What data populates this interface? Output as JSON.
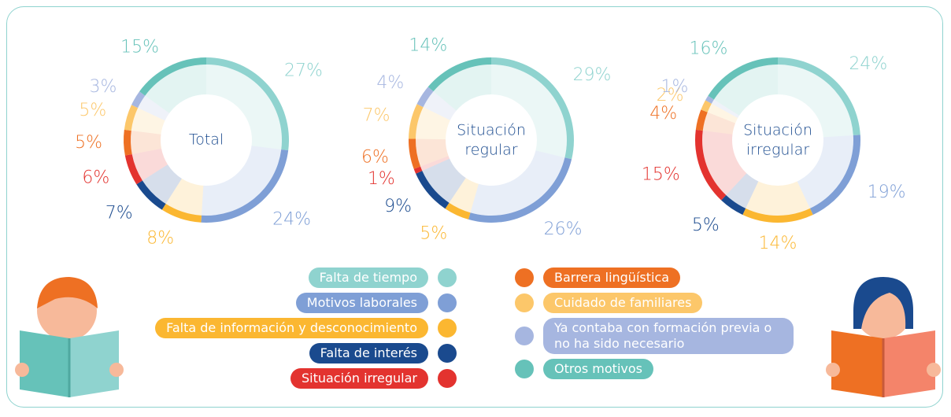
{
  "legend": {
    "categories": [
      "Falta de tiempo",
      "Motivos laborales",
      "Falta de información y desconocimiento",
      "Falta de interés",
      "Situación irregular",
      "Barrera lingüística",
      "Cuidado de familiares",
      "Ya contaba con formación previa o no ha sido necesario",
      "Otros motivos"
    ],
    "colors": [
      "#8fd3cf",
      "#7f9fd6",
      "#fbb731",
      "#1a4a8e",
      "#e3332f",
      "#ee7023",
      "#fcc76a",
      "#a6b6e0",
      "#66c2b9"
    ]
  },
  "chart_data": [
    {
      "type": "pie",
      "title": "Total",
      "values": [
        27,
        24,
        8,
        7,
        6,
        5,
        5,
        3,
        15
      ],
      "value_labels": [
        "27%",
        "24%",
        "8%",
        "7%",
        "6%",
        "5%",
        "5%",
        "3%",
        "15%"
      ]
    },
    {
      "type": "pie",
      "title": "Situación regular",
      "values": [
        29,
        26,
        5,
        9,
        1,
        6,
        7,
        4,
        14
      ],
      "value_labels": [
        "29%",
        "26%",
        "5%",
        "9%",
        "1%",
        "6%",
        "7%",
        "4%",
        "14%"
      ]
    },
    {
      "type": "pie",
      "title": "Situación irregular",
      "values": [
        24,
        19,
        14,
        5,
        15,
        4,
        2,
        1,
        16
      ],
      "value_labels": [
        "24%",
        "19%",
        "14%",
        "5%",
        "15%",
        "4%",
        "2%",
        "1%",
        "16%"
      ]
    }
  ]
}
